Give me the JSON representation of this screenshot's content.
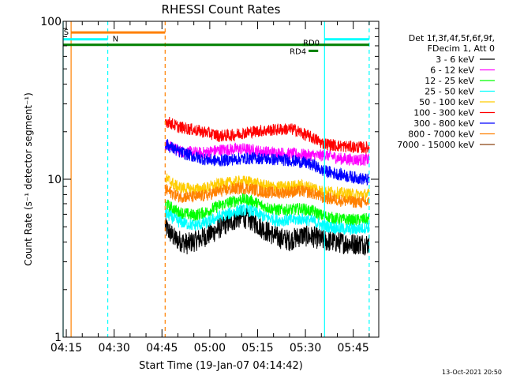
{
  "chart_data": {
    "type": "line",
    "title": "RHESSI Count Rates",
    "xlabel": "Start Time (19-Jan-07 04:14:42)",
    "ylabel": "Count Rate (s⁻¹ detector segment⁻¹)",
    "yscale": "log",
    "ylim": [
      1,
      100
    ],
    "xlim_minutes": [
      -1,
      98
    ],
    "x_ticks": [
      "04:15",
      "04:30",
      "04:45",
      "05:00",
      "05:15",
      "05:30",
      "05:45"
    ],
    "y_ticks": [
      "1",
      "10",
      "100"
    ],
    "detector_info": [
      "Det 1f,3f,4f,5f,6f,9f,",
      "FDecim 1, Att 0"
    ],
    "timestamp": "13-Oct-2021 20:50",
    "data_start_minute": 31,
    "data_end_minute": 95,
    "series": [
      {
        "name": "3 - 6 keV",
        "color": "#000000",
        "points": [
          [
            31,
            5.0
          ],
          [
            34,
            4.2
          ],
          [
            38,
            3.9
          ],
          [
            42,
            4.2
          ],
          [
            46,
            4.6
          ],
          [
            50,
            5.2
          ],
          [
            55,
            5.8
          ],
          [
            58,
            5.5
          ],
          [
            62,
            4.8
          ],
          [
            66,
            4.3
          ],
          [
            70,
            4.1
          ],
          [
            74,
            4.4
          ],
          [
            78,
            4.3
          ],
          [
            80,
            4.1
          ],
          [
            85,
            4.0
          ],
          [
            90,
            3.9
          ],
          [
            95,
            3.9
          ]
        ]
      },
      {
        "name": "6 - 12 keV",
        "color": "#ff00ff",
        "points": [
          [
            31,
            16.5
          ],
          [
            36,
            15.0
          ],
          [
            42,
            14.6
          ],
          [
            48,
            15.3
          ],
          [
            55,
            15.6
          ],
          [
            62,
            14.9
          ],
          [
            66,
            14.7
          ],
          [
            70,
            14.5
          ],
          [
            74,
            14.3
          ],
          [
            78,
            14.1
          ],
          [
            82,
            14.2
          ],
          [
            86,
            13.5
          ],
          [
            90,
            13.3
          ],
          [
            95,
            13.3
          ]
        ]
      },
      {
        "name": "12 - 25 keV",
        "color": "#00ff00",
        "points": [
          [
            31,
            7.0
          ],
          [
            35,
            6.2
          ],
          [
            40,
            5.9
          ],
          [
            44,
            6.2
          ],
          [
            48,
            6.8
          ],
          [
            55,
            7.5
          ],
          [
            58,
            7.3
          ],
          [
            62,
            6.7
          ],
          [
            66,
            6.4
          ],
          [
            70,
            6.4
          ],
          [
            74,
            6.5
          ],
          [
            78,
            6.2
          ],
          [
            80,
            5.9
          ],
          [
            85,
            5.6
          ],
          [
            90,
            5.5
          ],
          [
            95,
            5.6
          ]
        ]
      },
      {
        "name": "25 - 50 keV",
        "color": "#00ffff",
        "points": [
          [
            31,
            6.1
          ],
          [
            35,
            5.4
          ],
          [
            40,
            5.1
          ],
          [
            44,
            5.3
          ],
          [
            48,
            5.8
          ],
          [
            55,
            6.4
          ],
          [
            58,
            6.3
          ],
          [
            62,
            5.8
          ],
          [
            66,
            5.5
          ],
          [
            70,
            5.5
          ],
          [
            74,
            5.6
          ],
          [
            78,
            5.4
          ],
          [
            80,
            5.1
          ],
          [
            85,
            4.9
          ],
          [
            90,
            4.8
          ],
          [
            95,
            5.0
          ]
        ]
      },
      {
        "name": "50 - 100 keV",
        "color": "#ffcc00",
        "points": [
          [
            31,
            10.2
          ],
          [
            35,
            8.9
          ],
          [
            40,
            8.6
          ],
          [
            44,
            8.8
          ],
          [
            48,
            9.3
          ],
          [
            55,
            9.7
          ],
          [
            58,
            9.6
          ],
          [
            62,
            9.1
          ],
          [
            66,
            8.9
          ],
          [
            70,
            9.0
          ],
          [
            74,
            9.1
          ],
          [
            78,
            8.8
          ],
          [
            80,
            8.4
          ],
          [
            85,
            8.2
          ],
          [
            90,
            8.0
          ],
          [
            95,
            8.0
          ]
        ]
      },
      {
        "name": "100 - 300 keV",
        "color": "#ff0000",
        "points": [
          [
            31,
            23.5
          ],
          [
            35,
            21.5
          ],
          [
            40,
            20.5
          ],
          [
            44,
            19.8
          ],
          [
            48,
            18.8
          ],
          [
            52,
            19.0
          ],
          [
            55,
            19.6
          ],
          [
            60,
            20.2
          ],
          [
            66,
            20.6
          ],
          [
            70,
            20.8
          ],
          [
            72,
            20.5
          ],
          [
            74,
            19.5
          ],
          [
            78,
            18.0
          ],
          [
            80,
            17.0
          ],
          [
            85,
            16.3
          ],
          [
            90,
            16.0
          ],
          [
            95,
            15.8
          ]
        ]
      },
      {
        "name": "300 - 800 keV",
        "color": "#0000ff",
        "points": [
          [
            31,
            16.8
          ],
          [
            35,
            15.0
          ],
          [
            40,
            13.9
          ],
          [
            44,
            13.3
          ],
          [
            48,
            13.1
          ],
          [
            55,
            13.5
          ],
          [
            60,
            13.6
          ],
          [
            66,
            13.3
          ],
          [
            70,
            13.2
          ],
          [
            74,
            12.8
          ],
          [
            78,
            12.2
          ],
          [
            80,
            11.4
          ],
          [
            85,
            10.8
          ],
          [
            90,
            10.3
          ],
          [
            95,
            9.9
          ]
        ]
      },
      {
        "name": "800 - 7000 keV",
        "color": "#ff8000",
        "points": [
          [
            31,
            8.6
          ],
          [
            35,
            7.8
          ],
          [
            40,
            7.7
          ],
          [
            44,
            7.9
          ],
          [
            48,
            8.4
          ],
          [
            55,
            8.8
          ],
          [
            58,
            8.7
          ],
          [
            62,
            8.3
          ],
          [
            66,
            8.2
          ],
          [
            70,
            8.3
          ],
          [
            74,
            8.4
          ],
          [
            78,
            8.1
          ],
          [
            80,
            7.7
          ],
          [
            85,
            7.4
          ],
          [
            90,
            7.2
          ],
          [
            95,
            7.1
          ]
        ]
      },
      {
        "name": "7000 - 15000 keV",
        "color": "#8b4513",
        "points": []
      }
    ],
    "annotations": {
      "bars": [
        {
          "label": "S",
          "color": "#ff8000",
          "y": 85,
          "x1": 1.5,
          "x2": 31
        },
        {
          "label": "N",
          "color": "#00ffff",
          "y": 77,
          "x1": -1,
          "x2": 13
        },
        {
          "label": "",
          "color": "#00ffff",
          "y": 77,
          "x1": 81,
          "x2": 95
        },
        {
          "label": "",
          "color": "#008000",
          "y": 71,
          "x1": -1,
          "x2": 95
        },
        {
          "label": "RD0",
          "color": "#008000",
          "y": 71,
          "x1": 74,
          "x2": 76
        },
        {
          "label": "RD4",
          "color": "#008000",
          "y": 65,
          "x1": 76,
          "x2": 79
        }
      ],
      "vlines": [
        {
          "x": -1,
          "color": "#00ffff",
          "dashed": false
        },
        {
          "x": 1.5,
          "color": "#ff8000",
          "dashed": false
        },
        {
          "x": 13,
          "color": "#00ffff",
          "dashed": true
        },
        {
          "x": 31,
          "color": "#ff8000",
          "dashed": true
        },
        {
          "x": 81,
          "color": "#00ffff",
          "dashed": false
        },
        {
          "x": 95,
          "color": "#00ffff",
          "dashed": true
        }
      ]
    }
  }
}
